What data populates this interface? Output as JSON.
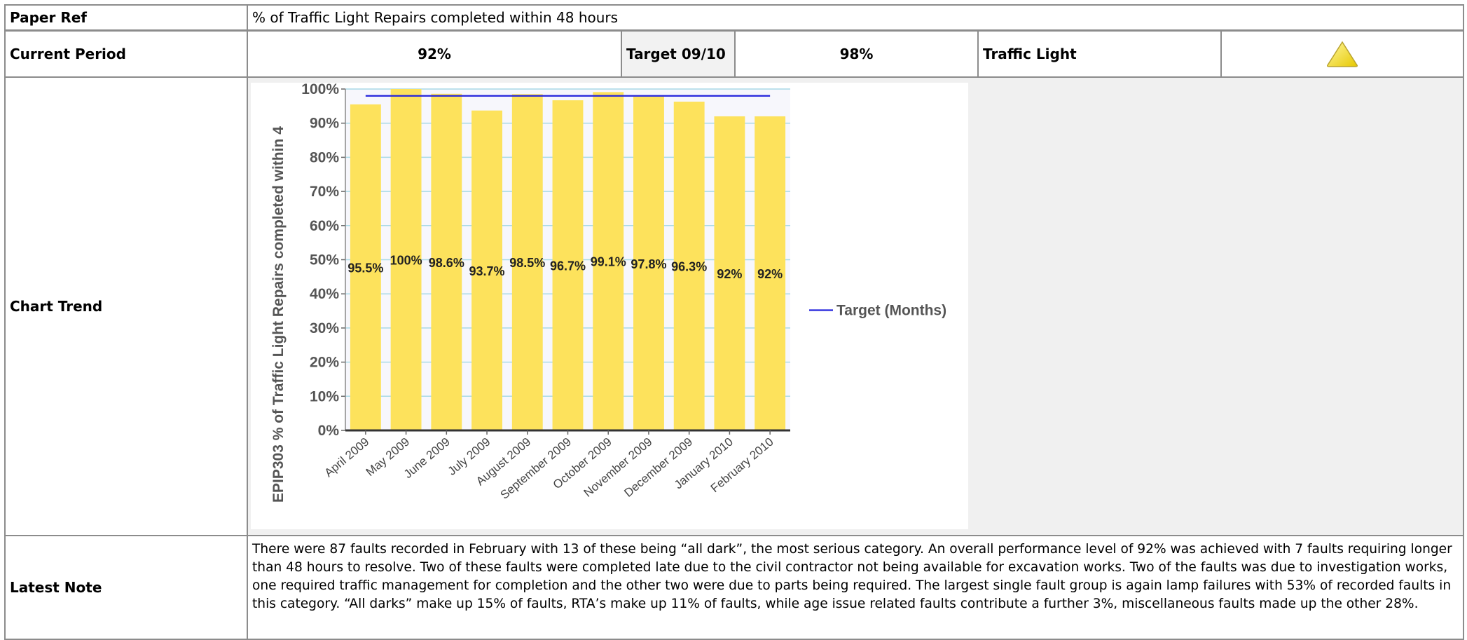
{
  "table": {
    "rows": [
      [
        "Paper Ref",
        "% of Traffic Light Repairs completed within 48 hours"
      ],
      [
        "Current Period",
        "92%",
        "Target 09/10",
        "98%",
        "Traffic Light"
      ],
      [
        "Chart Trend"
      ],
      [
        "Latest Note",
        "There were 87 faults recorded in February with 13 of these being “all dark”, the most serious category. An overall performance level of 92% was achieved with 7 faults requiring longer than 48 hours to resolve. Two of these faults were completed late due to the civil contractor not being available for excavation works. Two of the faults was due to investigation works, one required traffic management for completion and the other two were due to parts being required. The largest single fault group is again lamp failures with 53% of recorded faults in this category. “All darks” make up 15% of faults, RTA’s make up 11% of faults, while age issue related faults contribute a further 3%, miscellaneous faults made up the other 28%."
      ]
    ]
  },
  "chart_data": {
    "type": "bar",
    "y_label": "EPIP303 % of Traffic Light Repairs completed within 4",
    "categories": [
      "April 2009",
      "May 2009",
      "June 2009",
      "July 2009",
      "August 2009",
      "September 2009",
      "October 2009",
      "November 2009",
      "December 2009",
      "January 2010",
      "February 2010"
    ],
    "series": [
      {
        "type": "bar",
        "color": "#fde25c",
        "values": [
          95.5,
          100,
          98.6,
          93.7,
          98.5,
          96.7,
          99.1,
          97.8,
          96.3,
          92,
          92
        ],
        "value_labels": [
          "95.5%",
          "100%",
          "98.6%",
          "93.7%",
          "98.5%",
          "96.7%",
          "99.1%",
          "97.8%",
          "96.3%",
          "92%",
          "92%"
        ]
      },
      {
        "type": "line",
        "name": "Target (Months)",
        "color": "#2323dc",
        "values": [
          98,
          98,
          98,
          98,
          98,
          98,
          98,
          98,
          98,
          98,
          98
        ]
      }
    ],
    "ylim": [
      0,
      100
    ],
    "yticks": [
      {
        "value": 0,
        "label": "0%"
      },
      {
        "value": 10,
        "label": "10%"
      },
      {
        "value": 20,
        "label": "20%"
      },
      {
        "value": 30,
        "label": "30%"
      },
      {
        "value": 40,
        "label": "40%"
      },
      {
        "value": 50,
        "label": "50%"
      },
      {
        "value": 60,
        "label": "60%"
      },
      {
        "value": 70,
        "label": "70%"
      },
      {
        "value": 80,
        "label": "80%"
      },
      {
        "value": 90,
        "label": "90%"
      },
      {
        "value": 100,
        "label": "100%"
      }
    ],
    "grid": true,
    "legend": "right"
  }
}
